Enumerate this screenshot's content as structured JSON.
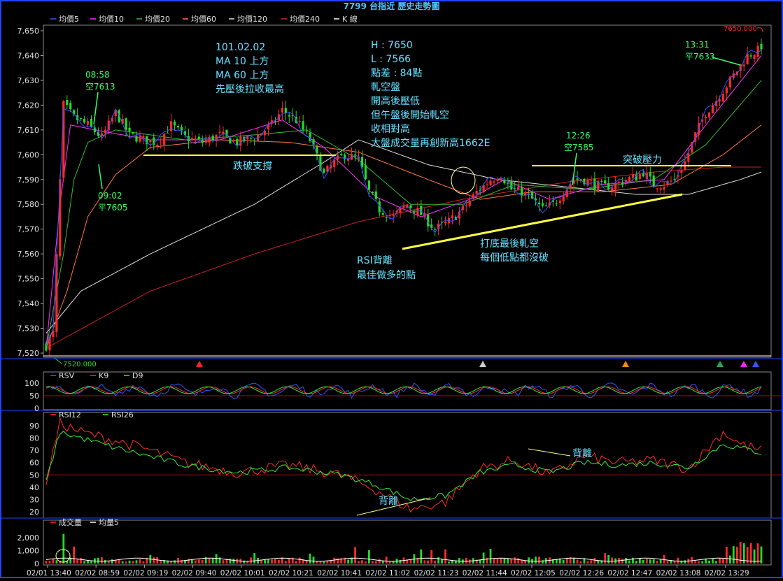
{
  "title": "7799 台指近   歷史走勢圖",
  "colors": {
    "bg": "#000000",
    "frame": "#ffffff",
    "up": "#ff2a2a",
    "down": "#22dd22",
    "ma5": "#3355ff",
    "ma10": "#ff33ff",
    "ma20": "#33bb33",
    "ma60": "#ff7744",
    "ma120": "#dddddd",
    "ma240": "#cc2222",
    "ann_green": "#33ff66",
    "ann_cyan": "#66e0ff",
    "ann_yellow": "#ffff44",
    "rsv": "#3355ff",
    "k9": "#ff2a2a",
    "d9": "#33ee33",
    "rsi12": "#ff2a2a",
    "rsi26": "#33ee33",
    "vol": "#ff2a2a",
    "volma": "#ffffff",
    "ref_red": "#aa1111"
  },
  "legend_main": [
    {
      "name": "均價5",
      "color": "#3355ff"
    },
    {
      "name": "均價10",
      "color": "#ff33ff"
    },
    {
      "name": "均價20",
      "color": "#33bb33"
    },
    {
      "name": "均價60",
      "color": "#ff7744"
    },
    {
      "name": "均價120",
      "color": "#dddddd"
    },
    {
      "name": "均價240",
      "color": "#cc2222"
    },
    {
      "name": "K 線",
      "color": "#ffffff"
    }
  ],
  "legend_kd": [
    {
      "name": "RSV",
      "color": "#3355ff"
    },
    {
      "name": "K9",
      "color": "#ff2a2a"
    },
    {
      "name": "D9",
      "color": "#33ee33"
    }
  ],
  "legend_rsi": [
    {
      "name": "RSI12",
      "color": "#ff2a2a"
    },
    {
      "name": "RSI26",
      "color": "#33ee33"
    }
  ],
  "legend_vol": [
    {
      "name": "成交量",
      "color": "#ff2a2a"
    },
    {
      "name": "均量5",
      "color": "#ffffff"
    }
  ],
  "price_marks": {
    "high": "7650.000",
    "low": "7520.000"
  },
  "annotations": {
    "block1": [
      "101.02.02",
      "MA 10 上方",
      "MA 60 上方",
      "先壓後拉收最高"
    ],
    "block2": [
      "H : 7650",
      "L : 7566",
      "點差 : 84點",
      "軋空盤",
      "開高後壓低",
      "但午盤後開始軋空",
      "收相對高",
      "大盤成交量再創新高1662E"
    ],
    "t0858": [
      "08:58",
      "空7613"
    ],
    "t0902": [
      "09:02",
      "平7605"
    ],
    "t1226": [
      "12:26",
      "空7585"
    ],
    "t1331": [
      "13:31",
      "平7633"
    ],
    "support_break": "跌破支撐",
    "breakout": "突破壓力",
    "rsi_div1": [
      "RSI背離",
      "最佳做多的點"
    ],
    "bottom": [
      "打底最後軋空",
      "每個低點都沒破"
    ],
    "div_top": "背離",
    "div_bottom": "背離"
  },
  "chart_data": [
    {
      "type": "candlestick",
      "ylim": [
        7520,
        7650
      ],
      "yticks": [
        "7,650",
        "7,640",
        "7,630",
        "7,620",
        "7,610",
        "7,600",
        "7,590",
        "7,580",
        "7,570",
        "7,560",
        "7,550",
        "7,540",
        "7,530",
        "7,520"
      ],
      "xticks": [
        "02/01 13:40",
        "02/02 08:59",
        "02/02 09:19",
        "02/02 09:40",
        "02/02 10:01",
        "02/02 10:21",
        "02/02 10:41",
        "02/02 11:02",
        "02/02 11:23",
        "02/02 11:44",
        "02/02 12:05",
        "02/02 12:26",
        "02/02 12:47",
        "02/02 13:08",
        "02/02 13:29"
      ],
      "close_path": [
        [
          0,
          7523
        ],
        [
          2,
          7528
        ],
        [
          5,
          7620
        ],
        [
          8,
          7615
        ],
        [
          12,
          7612
        ],
        [
          16,
          7607
        ],
        [
          20,
          7617
        ],
        [
          24,
          7608
        ],
        [
          28,
          7606
        ],
        [
          32,
          7605
        ],
        [
          36,
          7612
        ],
        [
          40,
          7607
        ],
        [
          45,
          7605
        ],
        [
          50,
          7608
        ],
        [
          55,
          7605
        ],
        [
          60,
          7607
        ],
        [
          65,
          7612
        ],
        [
          68,
          7618
        ],
        [
          72,
          7614
        ],
        [
          76,
          7606
        ],
        [
          80,
          7592
        ],
        [
          83,
          7597
        ],
        [
          86,
          7600
        ],
        [
          90,
          7598
        ],
        [
          93,
          7585
        ],
        [
          96,
          7578
        ],
        [
          100,
          7575
        ],
        [
          104,
          7580
        ],
        [
          108,
          7576
        ],
        [
          112,
          7570
        ],
        [
          116,
          7573
        ],
        [
          120,
          7578
        ],
        [
          124,
          7585
        ],
        [
          128,
          7590
        ],
        [
          131,
          7592
        ],
        [
          134,
          7586
        ],
        [
          137,
          7585
        ],
        [
          140,
          7582
        ],
        [
          143,
          7578
        ],
        [
          146,
          7580
        ],
        [
          149,
          7585
        ],
        [
          152,
          7590
        ],
        [
          155,
          7590
        ],
        [
          158,
          7588
        ],
        [
          161,
          7587
        ],
        [
          164,
          7588
        ],
        [
          167,
          7590
        ],
        [
          170,
          7591
        ],
        [
          172,
          7593
        ],
        [
          175,
          7588
        ],
        [
          178,
          7588
        ],
        [
          181,
          7590
        ],
        [
          184,
          7597
        ],
        [
          187,
          7608
        ],
        [
          190,
          7617
        ],
        [
          193,
          7622
        ],
        [
          196,
          7628
        ],
        [
          199,
          7634
        ],
        [
          202,
          7640
        ],
        [
          205,
          7642
        ],
        [
          206,
          7644
        ]
      ],
      "ma_paths": {
        "ma120": [
          [
            0,
            7528
          ],
          [
            10,
            7545
          ],
          [
            30,
            7560
          ],
          [
            60,
            7580
          ],
          [
            80,
            7597
          ],
          [
            90,
            7606
          ],
          [
            110,
            7596
          ],
          [
            130,
            7590
          ],
          [
            150,
            7587
          ],
          [
            170,
            7584
          ],
          [
            185,
            7584
          ],
          [
            200,
            7590
          ],
          [
            206,
            7593
          ]
        ],
        "ma240": [
          [
            0,
            7522
          ],
          [
            30,
            7545
          ],
          [
            60,
            7560
          ],
          [
            90,
            7573
          ],
          [
            120,
            7582
          ],
          [
            150,
            7589
          ],
          [
            175,
            7593
          ],
          [
            195,
            7595
          ],
          [
            206,
            7595
          ]
        ],
        "ma60": [
          [
            0,
            7522
          ],
          [
            6,
            7545
          ],
          [
            12,
            7575
          ],
          [
            20,
            7592
          ],
          [
            30,
            7603
          ],
          [
            50,
            7606
          ],
          [
            70,
            7605
          ],
          [
            90,
            7601
          ],
          [
            110,
            7590
          ],
          [
            125,
            7582
          ],
          [
            140,
            7585
          ],
          [
            160,
            7585
          ],
          [
            180,
            7588
          ],
          [
            195,
            7600
          ],
          [
            206,
            7612
          ]
        ],
        "ma20": [
          [
            0,
            7522
          ],
          [
            5,
            7560
          ],
          [
            8,
            7590
          ],
          [
            12,
            7605
          ],
          [
            20,
            7610
          ],
          [
            40,
            7606
          ],
          [
            60,
            7608
          ],
          [
            75,
            7610
          ],
          [
            90,
            7598
          ],
          [
            105,
            7580
          ],
          [
            120,
            7580
          ],
          [
            135,
            7588
          ],
          [
            155,
            7586
          ],
          [
            175,
            7590
          ],
          [
            190,
            7604
          ],
          [
            206,
            7630
          ]
        ],
        "ma10": [
          [
            0,
            7522
          ],
          [
            4,
            7580
          ],
          [
            7,
            7612
          ],
          [
            14,
            7610
          ],
          [
            30,
            7606
          ],
          [
            50,
            7606
          ],
          [
            68,
            7614
          ],
          [
            80,
            7603
          ],
          [
            95,
            7583
          ],
          [
            108,
            7575
          ],
          [
            122,
            7582
          ],
          [
            132,
            7590
          ],
          [
            145,
            7582
          ],
          [
            160,
            7588
          ],
          [
            178,
            7590
          ],
          [
            190,
            7612
          ],
          [
            206,
            7640
          ]
        ]
      },
      "signals": [
        "red",
        "white",
        "orange",
        "green",
        "magenta",
        "blue"
      ]
    },
    {
      "type": "line",
      "ylim": [
        0,
        100
      ],
      "yticks": [
        "100",
        "50",
        "0"
      ],
      "series": [
        {
          "name": "RSV"
        },
        {
          "name": "K9"
        },
        {
          "name": "D9"
        }
      ],
      "reference": 50
    },
    {
      "type": "line",
      "ylim": [
        20,
        95
      ],
      "yticks": [
        "90",
        "80",
        "70",
        "60",
        "50",
        "40",
        "30",
        "20"
      ],
      "series": [
        {
          "name": "RSI12",
          "path": [
            [
              0,
              45
            ],
            [
              4,
              92
            ],
            [
              10,
              85
            ],
            [
              20,
              78
            ],
            [
              30,
              70
            ],
            [
              40,
              60
            ],
            [
              55,
              52
            ],
            [
              70,
              58
            ],
            [
              85,
              50
            ],
            [
              95,
              38
            ],
            [
              105,
              22
            ],
            [
              115,
              28
            ],
            [
              125,
              55
            ],
            [
              135,
              62
            ],
            [
              145,
              50
            ],
            [
              155,
              65
            ],
            [
              165,
              60
            ],
            [
              175,
              62
            ],
            [
              185,
              55
            ],
            [
              195,
              85
            ],
            [
              200,
              75
            ],
            [
              206,
              70
            ]
          ]
        },
        {
          "name": "RSI26",
          "path": [
            [
              0,
              45
            ],
            [
              4,
              85
            ],
            [
              10,
              80
            ],
            [
              20,
              72
            ],
            [
              30,
              65
            ],
            [
              40,
              58
            ],
            [
              55,
              52
            ],
            [
              70,
              56
            ],
            [
              85,
              50
            ],
            [
              95,
              42
            ],
            [
              105,
              30
            ],
            [
              115,
              33
            ],
            [
              125,
              52
            ],
            [
              135,
              58
            ],
            [
              145,
              52
            ],
            [
              155,
              60
            ],
            [
              165,
              58
            ],
            [
              175,
              60
            ],
            [
              185,
              56
            ],
            [
              195,
              75
            ],
            [
              200,
              72
            ],
            [
              206,
              68
            ]
          ]
        }
      ],
      "reference": 50
    },
    {
      "type": "bar",
      "ylim": [
        0,
        2500
      ],
      "yticks": [
        "2,000",
        "1,000",
        "0"
      ],
      "series": [
        {
          "name": "成交量"
        },
        {
          "name": "均量5"
        }
      ]
    }
  ]
}
